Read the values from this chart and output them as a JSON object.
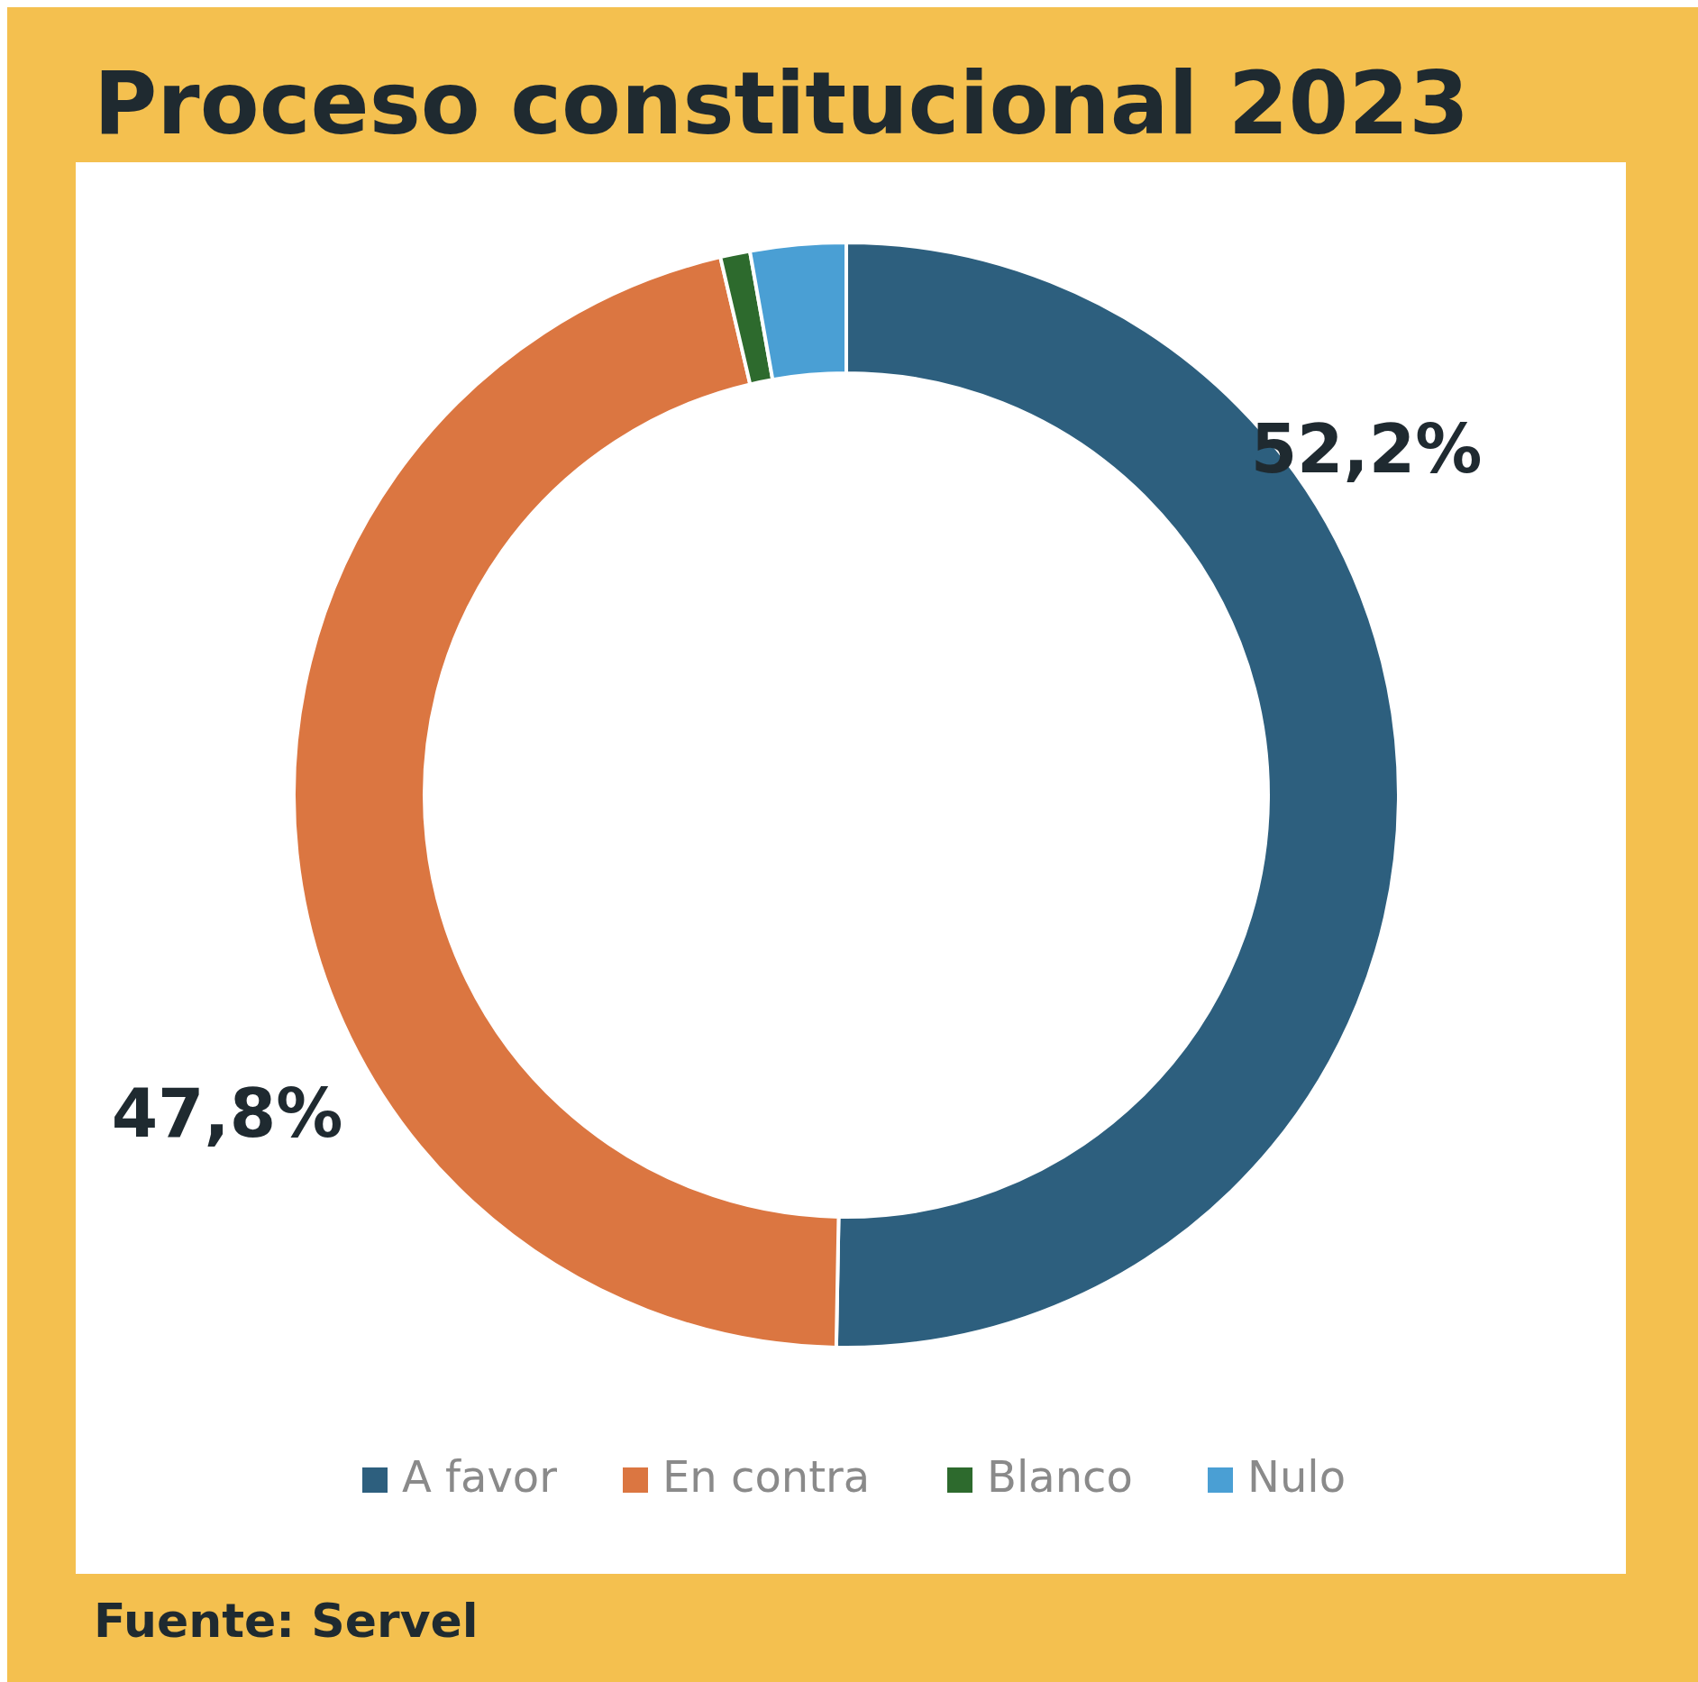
{
  "chart_data": {
    "type": "donut",
    "title": "Proceso constitucional 2023",
    "categories": [
      "A favor",
      "En contra",
      "Blanco",
      "Nulo"
    ],
    "values": [
      52.2,
      47.8,
      0.9,
      2.9
    ],
    "colors": [
      "#2d5f7e",
      "#db7641",
      "#2d6a2d",
      "#4a9fd4"
    ],
    "value_labels": [
      "52,2%",
      "47,8%",
      null,
      null
    ],
    "legend": "bottom",
    "annotations": [
      "Fuente: Servel"
    ]
  }
}
